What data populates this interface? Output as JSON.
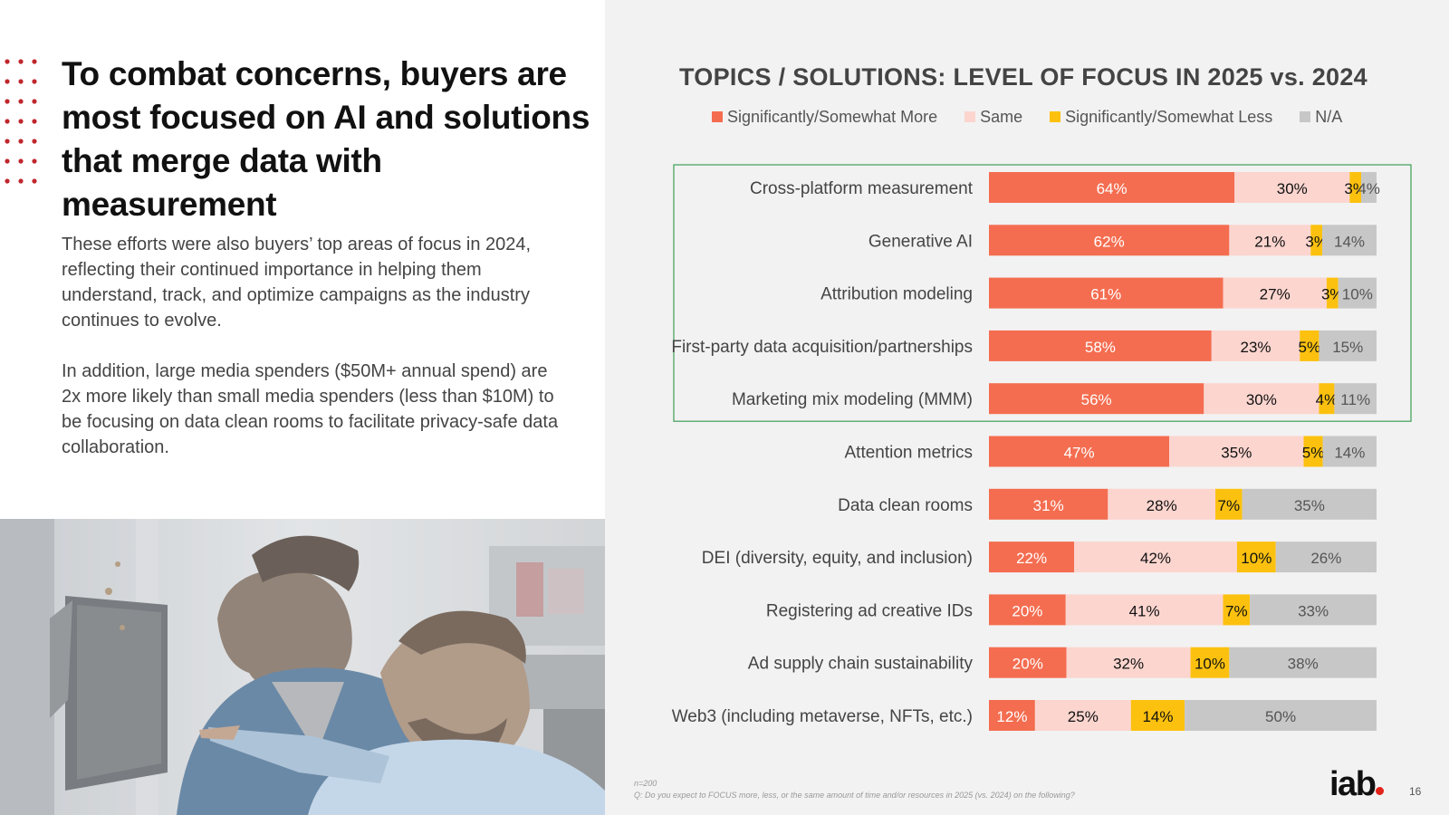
{
  "headline": "To combat concerns, buyers are most focused on AI and solutions that merge data with measurement",
  "paragraph1": "These efforts were also buyers’ top areas of focus in 2024, reflecting their continued importance in helping them understand, track, and optimize campaigns as the industry continues to evolve.",
  "paragraph2": "In addition, large media spenders ($50M+ annual spend) are 2x more likely than small media spenders (less than $10M) to be focusing on data clean rooms to facilitate privacy-safe data collaboration.",
  "photo_alt": "Two men looking at a computer monitor",
  "colors": {
    "more": "#f46d50",
    "same": "#fcd5cf",
    "less": "#fcc10f",
    "na": "#c7c7c7",
    "highlight_box": "#3e9e57",
    "accent": "#c0272d"
  },
  "chart_data": {
    "type": "bar",
    "orientation": "horizontal",
    "stacked": true,
    "title": "TOPICS / SOLUTIONS: LEVEL OF FOCUS IN 2025 vs. 2024",
    "legend_position": "top",
    "categories": [
      "Cross-platform measurement",
      "Generative AI",
      "Attribution modeling",
      "First-party data acquisition/partnerships",
      "Marketing mix modeling (MMM)",
      "Attention metrics",
      "Data clean rooms",
      "DEI (diversity, equity, and inclusion)",
      "Registering ad creative IDs",
      "Ad supply chain sustainability",
      "Web3 (including metaverse, NFTs, etc.)"
    ],
    "series": [
      {
        "name": "Significantly/Somewhat More",
        "values": [
          64,
          62,
          61,
          58,
          56,
          47,
          31,
          22,
          20,
          20,
          12
        ]
      },
      {
        "name": "Same",
        "values": [
          30,
          21,
          27,
          23,
          30,
          35,
          28,
          42,
          41,
          32,
          25
        ]
      },
      {
        "name": "Significantly/Somewhat Less",
        "values": [
          3,
          3,
          3,
          5,
          4,
          5,
          7,
          10,
          7,
          10,
          14
        ]
      },
      {
        "name": "N/A",
        "values": [
          4,
          14,
          10,
          15,
          11,
          14,
          35,
          26,
          33,
          38,
          50
        ]
      }
    ],
    "unit": "%",
    "highlighted_categories": [
      0,
      1,
      2,
      3,
      4
    ]
  },
  "footnote_n": "n=200",
  "footnote_q": "Q: Do you expect to FOCUS more, less, or the same amount of time and/or resources in 2025 (vs. 2024) on the following?",
  "logo_text": "iab",
  "page_number": "16"
}
